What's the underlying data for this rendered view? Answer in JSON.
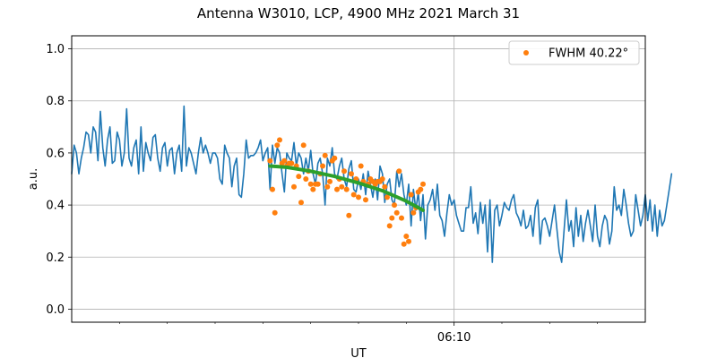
{
  "chart_data": {
    "type": "line",
    "title": "Antenna W3010, LCP, 4900 MHz 2021 March 31",
    "xlabel": "UT",
    "ylabel": "a.u.",
    "ylim": [
      -0.05,
      1.05
    ],
    "x_range_samples": [
      0,
      240
    ],
    "y_ticks": [
      0.0,
      0.2,
      0.4,
      0.6,
      0.8,
      1.0
    ],
    "y_tick_labels": [
      "0.0",
      "0.2",
      "0.4",
      "0.6",
      "0.8",
      "1.0"
    ],
    "x_major_tick": {
      "sample": 160,
      "label": "06:10"
    },
    "x_minor_tick_samples": [
      20,
      40,
      60,
      80,
      100,
      120,
      140,
      180,
      200,
      220
    ],
    "grid": true,
    "legend": {
      "position": "top-right",
      "entries": [
        {
          "label": "FWHM 40.22$^\\circ$",
          "display": "FWHM 40.22°",
          "marker": "dot"
        }
      ]
    },
    "series": [
      {
        "name": "signal",
        "color": "#1f77b4",
        "style": "line",
        "x_start": 0,
        "x_step": 1,
        "values": [
          0.52,
          0.63,
          0.6,
          0.52,
          0.58,
          0.62,
          0.68,
          0.67,
          0.6,
          0.7,
          0.68,
          0.57,
          0.76,
          0.62,
          0.55,
          0.65,
          0.7,
          0.56,
          0.57,
          0.68,
          0.65,
          0.55,
          0.6,
          0.77,
          0.58,
          0.55,
          0.62,
          0.65,
          0.52,
          0.7,
          0.53,
          0.64,
          0.6,
          0.57,
          0.66,
          0.67,
          0.58,
          0.53,
          0.62,
          0.64,
          0.55,
          0.61,
          0.62,
          0.52,
          0.6,
          0.63,
          0.53,
          0.78,
          0.55,
          0.62,
          0.6,
          0.56,
          0.52,
          0.6,
          0.66,
          0.6,
          0.63,
          0.6,
          0.56,
          0.6,
          0.6,
          0.58,
          0.5,
          0.48,
          0.63,
          0.6,
          0.58,
          0.47,
          0.55,
          0.58,
          0.44,
          0.43,
          0.52,
          0.65,
          0.58,
          0.59,
          0.59,
          0.6,
          0.62,
          0.65,
          0.57,
          0.6,
          0.62,
          0.46,
          0.63,
          0.56,
          0.62,
          0.6,
          0.52,
          0.45,
          0.6,
          0.58,
          0.57,
          0.64,
          0.55,
          0.6,
          0.58,
          0.52,
          0.58,
          0.53,
          0.61,
          0.52,
          0.48,
          0.56,
          0.58,
          0.52,
          0.4,
          0.58,
          0.55,
          0.62,
          0.52,
          0.5,
          0.55,
          0.58,
          0.5,
          0.47,
          0.54,
          0.57,
          0.46,
          0.45,
          0.5,
          0.46,
          0.52,
          0.44,
          0.53,
          0.48,
          0.43,
          0.5,
          0.42,
          0.55,
          0.52,
          0.41,
          0.48,
          0.5,
          0.42,
          0.4,
          0.53,
          0.47,
          0.52,
          0.44,
          0.4,
          0.48,
          0.32,
          0.46,
          0.38,
          0.45,
          0.34,
          0.44,
          0.27,
          0.4,
          0.42,
          0.46,
          0.38,
          0.48,
          0.36,
          0.34,
          0.28,
          0.37,
          0.44,
          0.4,
          0.42,
          0.36,
          0.33,
          0.3,
          0.3,
          0.39,
          0.39,
          0.47,
          0.33,
          0.37,
          0.29,
          0.41,
          0.33,
          0.4,
          0.22,
          0.42,
          0.18,
          0.38,
          0.4,
          0.32,
          0.36,
          0.41,
          0.39,
          0.38,
          0.42,
          0.44,
          0.37,
          0.35,
          0.32,
          0.38,
          0.31,
          0.32,
          0.36,
          0.28,
          0.39,
          0.42,
          0.25,
          0.34,
          0.35,
          0.32,
          0.28,
          0.34,
          0.4,
          0.31,
          0.22,
          0.18,
          0.3,
          0.42,
          0.3,
          0.34,
          0.24,
          0.39,
          0.28,
          0.36,
          0.26,
          0.33,
          0.38,
          0.32,
          0.26,
          0.4,
          0.28,
          0.24,
          0.32,
          0.36,
          0.34,
          0.25,
          0.3,
          0.47,
          0.38,
          0.4,
          0.36,
          0.46,
          0.4,
          0.33,
          0.28,
          0.3,
          0.44,
          0.38,
          0.32,
          0.36,
          0.44,
          0.34,
          0.42,
          0.3,
          0.4,
          0.28,
          0.38,
          0.32,
          0.34,
          0.4,
          0.46,
          0.52
        ]
      },
      {
        "name": "FWHM 40.22°",
        "color": "#ff7f0e",
        "style": "markers",
        "x_start": 83,
        "x_step": 1,
        "values": [
          0.57,
          0.46,
          0.37,
          0.63,
          0.65,
          0.56,
          0.57,
          0.55,
          0.56,
          0.56,
          0.47,
          0.55,
          0.51,
          0.41,
          0.63,
          0.5,
          0.53,
          0.48,
          0.46,
          0.48,
          0.48,
          0.52,
          0.55,
          0.59,
          0.47,
          0.49,
          0.57,
          0.58,
          0.46,
          0.5,
          0.47,
          0.53,
          0.46,
          0.36,
          0.52,
          0.44,
          0.5,
          0.43,
          0.55,
          0.49,
          0.42,
          0.48,
          0.5,
          0.49,
          0.48,
          0.49,
          0.49,
          0.5,
          0.47,
          0.43,
          0.32,
          0.35,
          0.4,
          0.37,
          0.53,
          0.35,
          0.25,
          0.28,
          0.26,
          0.44,
          0.37,
          0.39,
          0.45,
          0.46,
          0.48
        ]
      },
      {
        "name": "fit",
        "color": "#2ca02c",
        "style": "line",
        "x": [
          83,
          90,
          100,
          110,
          120,
          130,
          140,
          147
        ],
        "values": [
          0.55,
          0.545,
          0.53,
          0.51,
          0.485,
          0.455,
          0.415,
          0.38
        ]
      }
    ]
  }
}
